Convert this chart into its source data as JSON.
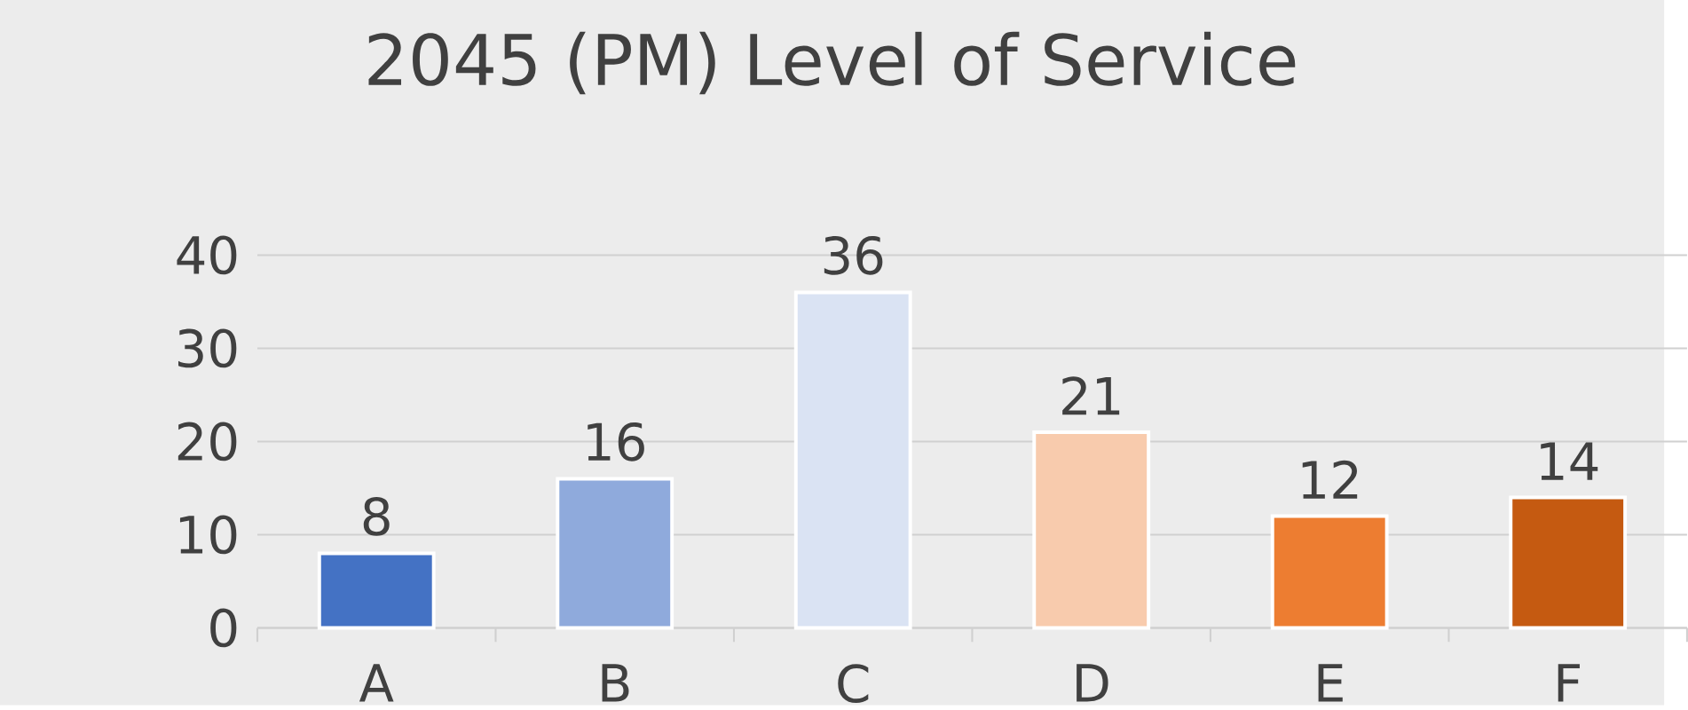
{
  "chart_data": {
    "type": "bar",
    "title": "2045 (PM) Level of Service",
    "categories": [
      "A",
      "B",
      "C",
      "D",
      "E",
      "F"
    ],
    "values": [
      8,
      16,
      36,
      21,
      12,
      14
    ],
    "colors": [
      "#4472c4",
      "#8faadc",
      "#dae3f3",
      "#f8cbad",
      "#ed7d31",
      "#c55a11"
    ],
    "ylim": [
      0,
      40
    ],
    "yticks": [
      0,
      10,
      20,
      30,
      40
    ],
    "grid": "y",
    "data_labels": true
  }
}
